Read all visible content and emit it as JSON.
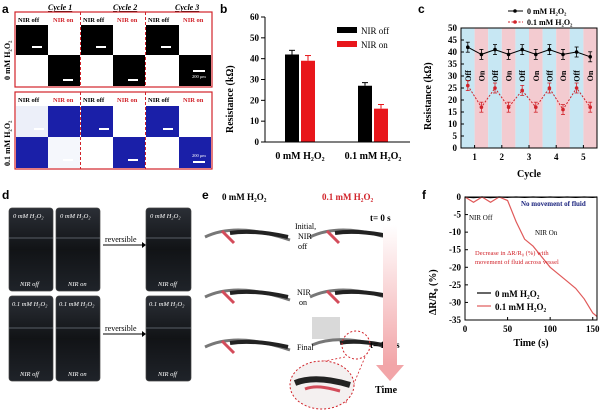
{
  "panel_a": {
    "label": "a",
    "cycles": [
      "Cycle 1",
      "Cycle 2",
      "Cycle 3"
    ],
    "row_labels": [
      "0 mM H₂O₂",
      "0.1 mM H₂O₂"
    ],
    "nir_off": "NIR off",
    "nir_on": "NIR on",
    "scale_text": "200 μm",
    "colors": {
      "frame": "#d1232a",
      "black": "#000000",
      "white": "#ffffff",
      "blue": "#1a1fa8"
    }
  },
  "panel_b": {
    "label": "b",
    "chart_data": {
      "type": "bar",
      "categories": [
        "0 mM H₂O₂",
        "0.1 mM H₂O₂"
      ],
      "series": [
        {
          "name": "NIR off",
          "values": [
            42,
            27
          ],
          "errors": [
            2,
            1.5
          ],
          "color": "#000000"
        },
        {
          "name": "NIR on",
          "values": [
            39,
            16
          ],
          "errors": [
            2.5,
            2
          ],
          "color": "#e8161b"
        }
      ],
      "ylabel": "Resistance (kΩ)",
      "ylim": [
        0,
        60
      ],
      "yticks": [
        0,
        10,
        20,
        30,
        40,
        50,
        60
      ],
      "legend": "top-right"
    }
  },
  "panel_c": {
    "label": "c",
    "on_text": "On",
    "off_text": "Off",
    "chart_data": {
      "type": "line",
      "x": [
        0.75,
        1.25,
        1.75,
        2.25,
        2.75,
        3.25,
        3.75,
        4.25,
        4.75,
        5.25
      ],
      "series": [
        {
          "name": "0 mM H₂O₂",
          "values": [
            42,
            39,
            41,
            39,
            41,
            39,
            41,
            39,
            40,
            38
          ],
          "color": "#000000"
        },
        {
          "name": "0.1 mM H₂O₂",
          "values": [
            26,
            17,
            25,
            17,
            24,
            17,
            25,
            16,
            25,
            17
          ],
          "color": "#d1232a"
        }
      ],
      "xlabel": "Cycle",
      "ylabel": "Resistance (kΩ)",
      "xticks": [
        1,
        2,
        3,
        4,
        5
      ],
      "yticks": [
        0,
        5,
        10,
        15,
        20,
        25,
        30,
        35,
        40,
        45,
        50
      ],
      "ylim": [
        0,
        50
      ],
      "legend": "top-right",
      "band_colors": {
        "off": "#c7e7f3",
        "on": "#f3cbd0"
      }
    }
  },
  "panel_d": {
    "label": "d",
    "top_left": "0 mM H₂O₂",
    "bottom_left": "0.1 mM H₂O₂",
    "nir_off": "NIR off",
    "nir_on": "NIR on",
    "reversible": "reversible"
  },
  "panel_e": {
    "label": "e",
    "col_left": "0 mM H₂O₂",
    "col_right": "0.1 mM H₂O₂",
    "row_initial": "Initial,",
    "row_initial2": "NIR",
    "row_initial3": "off",
    "row_nir": "NIR",
    "row_nir2": "on",
    "row_final": "Final",
    "t0": "t= 0 s",
    "t150": "t= 150 s",
    "time": "Time"
  },
  "panel_f": {
    "label": "f",
    "annotation_top": "No movement of fluid",
    "nir_off": "NIR Off",
    "nir_on": "NIR On",
    "decrease1": "Decrease in ΔR/R₀ (%) with",
    "decrease2": "movement of fluid across vessel",
    "chart_data": {
      "type": "line",
      "x": [
        0,
        10,
        20,
        30,
        40,
        50,
        60,
        70,
        80,
        90,
        100,
        110,
        120,
        130,
        140,
        150,
        155
      ],
      "series": [
        {
          "name": "0 mM H₂O₂",
          "values": [
            0,
            -0.2,
            0,
            -0.2,
            0,
            -0.1,
            0,
            -0.1,
            0,
            -0.1,
            0,
            -0.1,
            0,
            -0.1,
            0,
            -0.1,
            0
          ],
          "color": "#000000"
        },
        {
          "name": "0.1 mM H₂O₂",
          "values": [
            0,
            -1.5,
            0,
            -1.5,
            0,
            -1,
            -7,
            -12,
            -14,
            -17,
            -20,
            -22,
            -24,
            -26,
            -29,
            -33,
            -34
          ],
          "color": "#e05a5a"
        }
      ],
      "xlabel": "Time (s)",
      "ylabel": "ΔR/R₀ (%)",
      "xticks": [
        0,
        50,
        100,
        150
      ],
      "yticks": [
        0,
        -5,
        -10,
        -15,
        -20,
        -25,
        -30,
        -35
      ],
      "ylim": [
        -35,
        0
      ],
      "legend": "bottom-left"
    }
  }
}
